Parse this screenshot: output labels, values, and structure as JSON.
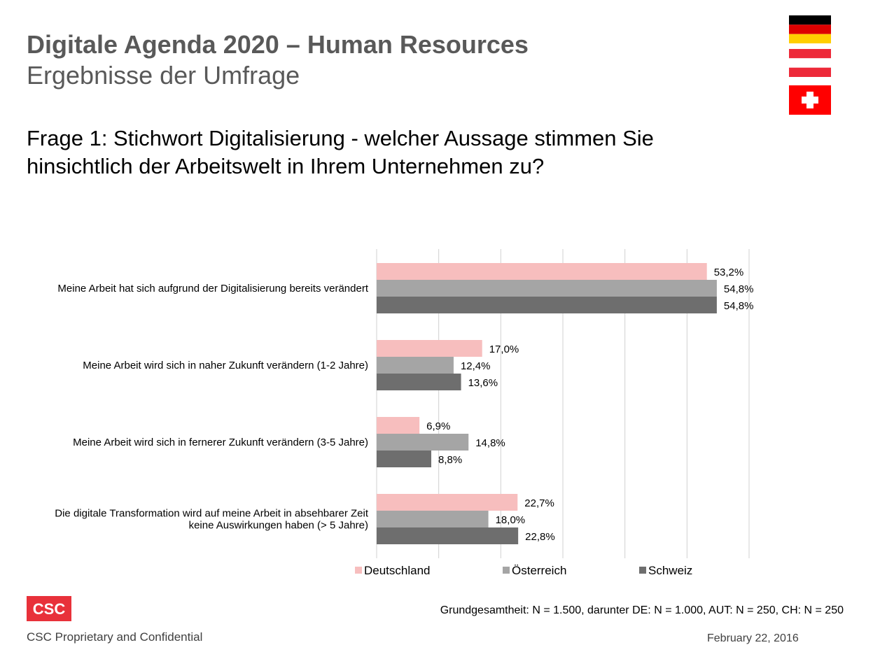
{
  "header": {
    "title": "Digitale Agenda 2020 – Human Resources",
    "subtitle": "Ergebnisse der Umfrage",
    "question_line1": "Frage 1: Stichwort Digitalisierung - welcher Aussage stimmen Sie",
    "question_line2": "hinsichtlich der Arbeitswelt in Ihrem Unternehmen zu?"
  },
  "flags": [
    "germany-flag-icon",
    "austria-flag-icon",
    "switzerland-flag-icon"
  ],
  "chart_data": {
    "type": "bar",
    "orientation": "horizontal",
    "categories": [
      [
        "Meine Arbeit hat sich aufgrund der Digitalisierung bereits verändert"
      ],
      [
        "Meine Arbeit wird sich in naher Zukunft verändern  (1-2 Jahre)"
      ],
      [
        "Meine Arbeit wird sich in fernerer Zukunft verändern (3-5 Jahre)"
      ],
      [
        "Die digitale Transformation wird auf meine Arbeit in absehbarer Zeit",
        "keine Auswirkungen haben (> 5 Jahre)"
      ]
    ],
    "series": [
      {
        "name": "Deutschland",
        "color": "#F7BEBE",
        "values": [
          53.2,
          17.0,
          6.9,
          22.7
        ],
        "labels": [
          "53,2%",
          "17,0%",
          "6,9%",
          "22,7%"
        ]
      },
      {
        "name": "Österreich",
        "color": "#A5A5A5",
        "values": [
          54.8,
          12.4,
          14.8,
          18.0
        ],
        "labels": [
          "54,8%",
          "12,4%",
          "14,8%",
          "18,0%"
        ]
      },
      {
        "name": "Schweiz",
        "color": "#6E6E6E",
        "values": [
          54.8,
          13.6,
          8.8,
          22.8
        ],
        "labels": [
          "54,8%",
          "13,6%",
          "8,8%",
          "22,8%"
        ]
      }
    ],
    "xlim": [
      0,
      60
    ],
    "gridlines": [
      10,
      20,
      30,
      40,
      50,
      60
    ],
    "legend_position": "bottom",
    "axis_labels_visible": false
  },
  "footer": {
    "logo_text": "CSC",
    "sample_note": "Grundgesamtheit: N = 1.500, darunter DE: N = 1.000, AUT: N = 250, CH: N = 250",
    "proprietary": "CSC Proprietary and Confidential",
    "date": "February 22, 2016"
  },
  "colors": {
    "title_gray": "#595959",
    "csc_red": "#E8313A",
    "germany_black": "#000000",
    "germany_red": "#DD0000",
    "germany_gold": "#FFCE00",
    "austria_red": "#ED2939",
    "swiss_red": "#FF0000"
  }
}
